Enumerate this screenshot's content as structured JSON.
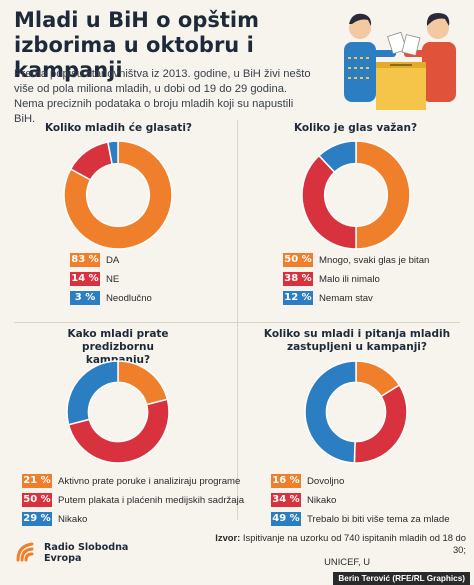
{
  "title": "Mladi u BiH o opštim izborima u oktobru i kampanji",
  "intro": "Prema popisu stanovništva iz 2013. godine, u BiH živi nešto više od pola miliona mladih, u dobi od 19 do 29 godina. Nema preciznih podataka o broju mladih koji su napustili BiH.",
  "colors": {
    "orange": "#f07f2b",
    "red": "#d8323e",
    "blue": "#2b7ec1"
  },
  "chart_data": [
    {
      "type": "pie",
      "title": "Koliko mladih će glasati?",
      "slices": [
        {
          "label": "DA",
          "value": 83,
          "pct_label": "83 %",
          "color": "#f07f2b"
        },
        {
          "label": "NE",
          "value": 14,
          "pct_label": "14 %",
          "color": "#d8323e"
        },
        {
          "label": "Neodlučno",
          "value": 3,
          "pct_label": "3 %",
          "color": "#2b7ec1"
        }
      ]
    },
    {
      "type": "pie",
      "title": "Koliko je glas važan?",
      "slices": [
        {
          "label": "Mnogo, svaki glas je bitan",
          "value": 50,
          "pct_label": "50 %",
          "color": "#f07f2b"
        },
        {
          "label": "Malo ili nimalo",
          "value": 38,
          "pct_label": "38 %",
          "color": "#d8323e"
        },
        {
          "label": "Nemam stav",
          "value": 12,
          "pct_label": "12 %",
          "color": "#2b7ec1"
        }
      ]
    },
    {
      "type": "pie",
      "title": "Kako mladi prate predizbornu kampanju?",
      "slices": [
        {
          "label": "Aktivno prate poruke i analiziraju programe",
          "value": 21,
          "pct_label": "21 %",
          "color": "#f07f2b"
        },
        {
          "label": "Putem plakata i plaćenih medijskih sadržaja",
          "value": 50,
          "pct_label": "50 %",
          "color": "#d8323e"
        },
        {
          "label": "Nikako",
          "value": 29,
          "pct_label": "29 %",
          "color": "#2b7ec1"
        }
      ]
    },
    {
      "type": "pie",
      "title": "Koliko su mladi i pitanja mladih zastupljeni u kampanji?",
      "slices": [
        {
          "label": "Dovoljno",
          "value": 16,
          "pct_label": "16 %",
          "color": "#f07f2b"
        },
        {
          "label": "Nikako",
          "value": 34,
          "pct_label": "34 %",
          "color": "#d8323e"
        },
        {
          "label": "Trebalo bi biti više tema za mlade",
          "value": 49,
          "pct_label": "49 %",
          "color": "#2b7ec1"
        }
      ]
    }
  ],
  "footer": {
    "logo_line1": "Radio Slobodna",
    "logo_line2": "Evropa",
    "source_label": "Izvor:",
    "source_text": "Ispitivanje na uzorku od 740 ispitanih mladih od 18 do 30;",
    "source_line2": "UNICEF, U",
    "credit": "Berin Terović (RFE/RL Graphics)"
  }
}
